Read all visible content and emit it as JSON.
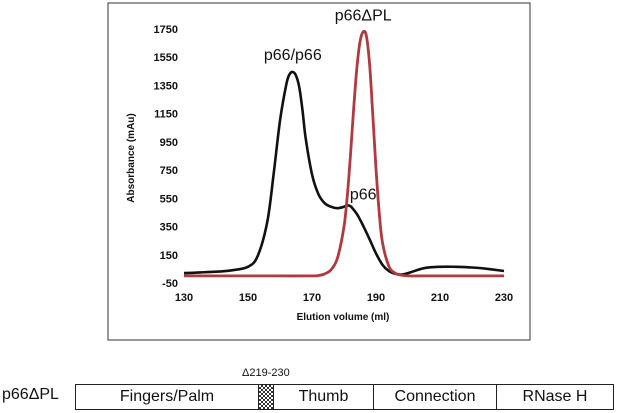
{
  "chart_data": {
    "type": "line",
    "xlabel": "Elution volume (ml)",
    "ylabel": "Absorbance (mAu)",
    "xlim": [
      130,
      230
    ],
    "ylim": [
      -50,
      1750
    ],
    "xticks": [
      130,
      150,
      170,
      190,
      210,
      230
    ],
    "yticks": [
      -50,
      150,
      350,
      550,
      750,
      950,
      1150,
      1350,
      1550,
      1750
    ],
    "grid": false,
    "series": [
      {
        "name": "p66/p66",
        "color": "#111111",
        "x": [
          130,
          135,
          140,
          145,
          150,
          153,
          156,
          158,
          160,
          162,
          163,
          164,
          165,
          166,
          167,
          168,
          170,
          172,
          174,
          176,
          178,
          180,
          181,
          182,
          183,
          184,
          185,
          186,
          188,
          190,
          192,
          194,
          196,
          198,
          200,
          205,
          210,
          215,
          220,
          225,
          230
        ],
        "y": [
          20,
          25,
          30,
          40,
          65,
          140,
          380,
          720,
          1100,
          1360,
          1430,
          1445,
          1420,
          1340,
          1180,
          980,
          720,
          580,
          515,
          490,
          480,
          490,
          500,
          495,
          470,
          440,
          400,
          355,
          260,
          160,
          80,
          35,
          15,
          10,
          20,
          55,
          65,
          65,
          60,
          50,
          35
        ]
      },
      {
        "name": "p66ΔPL",
        "color": "#b03a40",
        "x": [
          130,
          140,
          150,
          160,
          170,
          172,
          174,
          176,
          178,
          180,
          181,
          182,
          183,
          184,
          185,
          186,
          187,
          188,
          189,
          190,
          191,
          192,
          194,
          196,
          198,
          200,
          205,
          210,
          220,
          230
        ],
        "y": [
          0,
          0,
          0,
          0,
          0,
          3,
          15,
          45,
          130,
          350,
          560,
          850,
          1180,
          1470,
          1660,
          1730,
          1700,
          1500,
          1140,
          760,
          450,
          240,
          70,
          20,
          5,
          0,
          0,
          0,
          0,
          0
        ]
      }
    ],
    "annotations": [
      {
        "text": "p66/p66",
        "x": 164,
        "y": 1530
      },
      {
        "text": "p66ΔPL",
        "x": 186,
        "y": 1810
      },
      {
        "text": "p66",
        "x": 186,
        "y": 540
      }
    ]
  },
  "domain_map": {
    "construct_label": "p66ΔPL",
    "deletion_label": "Δ219-230",
    "domains": [
      "Fingers/Palm",
      "Thumb",
      "Connection",
      "RNase H"
    ],
    "deletion_pattern": "checkered"
  }
}
